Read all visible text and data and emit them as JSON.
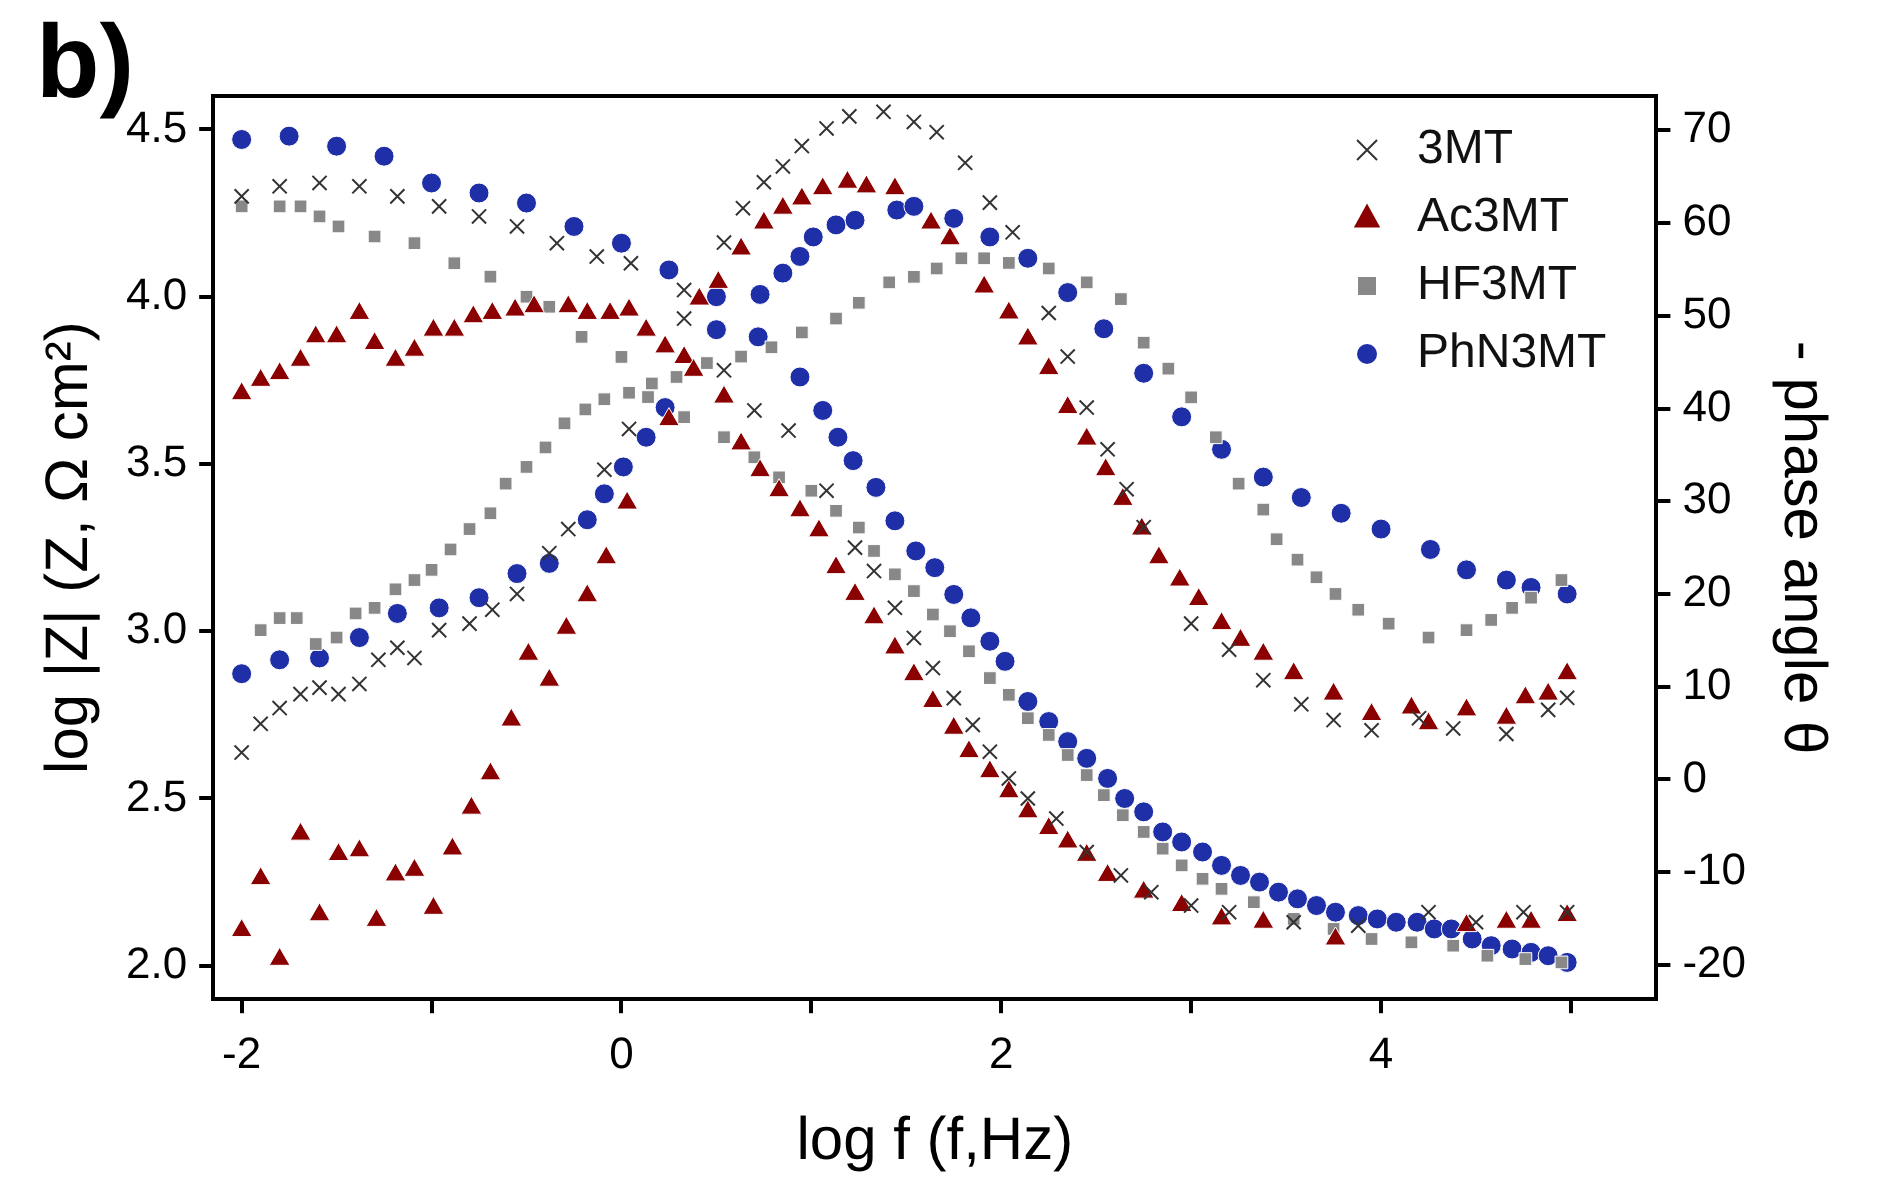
{
  "chart_data": {
    "type": "scatter",
    "title": "b)",
    "xlabel": "log f (f,Hz)",
    "ylabel": "log |Z| (Z, Ω cm²)",
    "y2label": "- phase angle θ",
    "xlim": [
      -2.15,
      5.45
    ],
    "xticks": [
      -2,
      {
        "value": -1,
        "label": null
      },
      0,
      {
        "value": 1,
        "label": null
      },
      2,
      {
        "value": 3,
        "label": null
      },
      4,
      {
        "value": 5,
        "label": null
      }
    ],
    "ylim": [
      1.9,
      4.6
    ],
    "yticks": [
      {
        "value": 2,
        "label": "2.0"
      },
      2.5,
      {
        "value": 3,
        "label": "3.0"
      },
      3.5,
      {
        "value": 4,
        "label": "4.0"
      },
      4.5
    ],
    "y2lim": [
      -23.7,
      73.7
    ],
    "y2ticks": [
      -20,
      -10,
      0,
      10,
      20,
      30,
      40,
      50,
      60,
      70
    ],
    "legend": "top right",
    "series": [
      {
        "name": "3MT",
        "color": "#333333",
        "marker": "cross",
        "x": [
          -2,
          -1.8,
          -1.59,
          -1.38,
          -1.18,
          -0.96,
          -0.75,
          -0.55,
          -0.34,
          -0.13,
          0.05,
          0.33,
          0.54,
          0.7,
          0.88,
          1.08,
          1.23,
          1.33,
          1.44,
          1.54,
          1.64,
          1.75,
          1.85,
          1.94,
          2.04,
          2.14,
          2.29,
          2.45,
          2.63,
          2.79,
          3.0,
          3.2,
          3.54,
          3.88,
          4.25,
          4.5,
          4.75,
          4.98
        ],
        "values": [
          4.3,
          4.33,
          4.34,
          4.33,
          4.3,
          4.27,
          4.24,
          4.21,
          4.16,
          4.12,
          4.1,
          4.02,
          3.78,
          3.66,
          3.6,
          3.42,
          3.25,
          3.18,
          3.07,
          2.98,
          2.89,
          2.8,
          2.72,
          2.64,
          2.56,
          2.5,
          2.44,
          2.34,
          2.27,
          2.22,
          2.18,
          2.16,
          2.13,
          2.12,
          2.16,
          2.13,
          2.16,
          2.16
        ]
      },
      {
        "color": "#333333",
        "marker": "cross",
        "axis": "y2",
        "x": [
          -2,
          -1.9,
          -1.8,
          -1.69,
          -1.59,
          -1.49,
          -1.38,
          -1.28,
          -1.18,
          -1.09,
          -0.96,
          -0.8,
          -0.68,
          -0.55,
          -0.38,
          -0.28,
          -0.09,
          0.04,
          0.33,
          0.54,
          0.64,
          0.75,
          0.85,
          0.95,
          1.08,
          1.2,
          1.38,
          1.54,
          1.66,
          1.81,
          1.94,
          2.06,
          2.25,
          2.35,
          2.45,
          2.56,
          2.66,
          2.75,
          3.0,
          3.2,
          3.38,
          3.58,
          3.75,
          3.95,
          4.2,
          4.38,
          4.66,
          4.88,
          4.98
        ],
        "values": [
          2.9,
          6.0,
          7.7,
          9.2,
          9.9,
          9.2,
          10.3,
          12.9,
          14.2,
          13.1,
          16.1,
          16.8,
          18.3,
          20.0,
          24.4,
          27.0,
          33.4,
          37.8,
          49.7,
          57.9,
          61.6,
          64.4,
          66.1,
          68.3,
          70.2,
          71.5,
          72.0,
          70.9,
          69.8,
          66.5,
          62.2,
          59.0,
          50.3,
          45.6,
          40.1,
          35.6,
          31.3,
          27.2,
          16.8,
          14.0,
          10.7,
          8.1,
          6.4,
          5.3,
          6.6,
          5.5,
          4.9,
          7.5,
          8.8
        ]
      },
      {
        "name": "Ac3MT",
        "color": "#8b0000",
        "marker": "triangle",
        "x": [
          -2,
          -1.9,
          -1.8,
          -1.69,
          -1.61,
          -1.5,
          -1.38,
          -1.3,
          -1.19,
          -1.09,
          -0.99,
          -0.88,
          -0.78,
          -0.68,
          -0.56,
          -0.46,
          -0.28,
          -0.18,
          -0.06,
          0.04,
          0.13,
          0.23,
          0.38,
          0.54,
          0.63,
          0.73,
          0.83,
          0.94,
          1.04,
          1.13,
          1.23,
          1.33,
          1.44,
          1.54,
          1.64,
          1.75,
          1.83,
          1.94,
          2.04,
          2.14,
          2.25,
          2.35,
          2.45,
          2.56,
          2.75,
          2.95,
          3.16,
          3.38,
          3.76,
          4.45,
          4.66,
          4.79,
          4.98
        ],
        "values": [
          3.71,
          3.75,
          3.77,
          3.81,
          3.88,
          3.88,
          3.95,
          3.86,
          3.81,
          3.84,
          3.9,
          3.9,
          3.94,
          3.95,
          3.96,
          3.97,
          3.97,
          3.95,
          3.95,
          3.96,
          3.9,
          3.85,
          3.78,
          3.7,
          3.56,
          3.48,
          3.42,
          3.36,
          3.3,
          3.19,
          3.11,
          3.04,
          2.95,
          2.87,
          2.79,
          2.71,
          2.64,
          2.58,
          2.52,
          2.46,
          2.41,
          2.37,
          2.33,
          2.27,
          2.22,
          2.18,
          2.14,
          2.13,
          2.08,
          2.12,
          2.13,
          2.13,
          2.15
        ]
      },
      {
        "color": "#8b0000",
        "marker": "triangle",
        "axis": "y2",
        "x": [
          -2,
          -1.9,
          -1.8,
          -1.69,
          -1.59,
          -1.49,
          -1.38,
          -1.29,
          -1.19,
          -1.09,
          -0.99,
          -0.89,
          -0.79,
          -0.69,
          -0.58,
          -0.49,
          -0.38,
          -0.29,
          -0.18,
          -0.08,
          0.03,
          0.25,
          0.33,
          0.41,
          0.51,
          0.63,
          0.75,
          0.85,
          0.95,
          1.06,
          1.19,
          1.29,
          1.44,
          1.63,
          1.73,
          1.91,
          2.04,
          2.14,
          2.25,
          2.35,
          2.45,
          2.55,
          2.64,
          2.74,
          2.83,
          2.94,
          3.04,
          3.16,
          3.26,
          3.38,
          3.54,
          3.75,
          3.95,
          4.16,
          4.25,
          4.45,
          4.66,
          4.76,
          4.88,
          4.98
        ],
        "values": [
          -16.3,
          -10.7,
          -19.4,
          -5.9,
          -14.6,
          -8.1,
          -7.7,
          -15.2,
          -10.3,
          -9.8,
          -13.9,
          -7.5,
          -3.1,
          0.6,
          6.4,
          13.5,
          10.7,
          16.3,
          19.8,
          23.9,
          29.8,
          38.8,
          45.5,
          51.8,
          53.6,
          57.2,
          60.0,
          61.6,
          62.6,
          63.7,
          64.4,
          63.9,
          63.7,
          60.0,
          58.3,
          53.1,
          50.3,
          47.5,
          44.3,
          40.1,
          36.7,
          33.4,
          30.2,
          27.0,
          23.9,
          21.5,
          19.4,
          16.8,
          15.0,
          13.5,
          11.4,
          9.2,
          7.0,
          7.7,
          6.0,
          7.5,
          6.6,
          8.8,
          9.2,
          11.4
        ]
      },
      {
        "name": "HF3MT",
        "color": "#888888",
        "marker": "square",
        "x": [
          -2,
          -1.8,
          -1.69,
          -1.59,
          -1.49,
          -1.3,
          -1.09,
          -0.88,
          -0.69,
          -0.5,
          -0.38,
          -0.21,
          0,
          0.14,
          0.33,
          0.54,
          0.7,
          0.83,
          1.0,
          1.13,
          1.25,
          1.33,
          1.44,
          1.54,
          1.64,
          1.73,
          1.83,
          1.94,
          2.04,
          2.14,
          2.25,
          2.35,
          2.45,
          2.54,
          2.64,
          2.75,
          2.85,
          2.95,
          3.06,
          3.16,
          3.33,
          3.54,
          3.75,
          3.95,
          4.16,
          4.38,
          4.56,
          4.76,
          4.95
        ],
        "values": [
          4.27,
          4.27,
          4.27,
          4.24,
          4.21,
          4.18,
          4.16,
          4.1,
          4.06,
          4.0,
          3.97,
          3.88,
          3.82,
          3.7,
          3.64,
          3.58,
          3.52,
          3.46,
          3.42,
          3.36,
          3.31,
          3.24,
          3.17,
          3.12,
          3.05,
          3.0,
          2.94,
          2.86,
          2.81,
          2.74,
          2.69,
          2.63,
          2.57,
          2.51,
          2.45,
          2.4,
          2.35,
          2.3,
          2.26,
          2.23,
          2.19,
          2.14,
          2.11,
          2.08,
          2.07,
          2.06,
          2.03,
          2.02,
          2.01
        ]
      },
      {
        "color": "#888888",
        "marker": "square",
        "axis": "y2",
        "x": [
          -1.9,
          -1.8,
          -1.71,
          -1.61,
          -1.5,
          -1.4,
          -1.3,
          -1.19,
          -1.09,
          -1.0,
          -0.9,
          -0.8,
          -0.69,
          -0.61,
          -0.5,
          -0.4,
          -0.3,
          -0.19,
          -0.09,
          0.04,
          0.16,
          0.29,
          0.45,
          0.63,
          0.79,
          0.95,
          1.13,
          1.25,
          1.41,
          1.54,
          1.66,
          1.79,
          1.91,
          2.04,
          2.25,
          2.45,
          2.63,
          2.75,
          2.88,
          3.0,
          3.13,
          3.25,
          3.38,
          3.45,
          3.56,
          3.66,
          3.76,
          3.88,
          4.04,
          4.25,
          4.45,
          4.58,
          4.69,
          4.79,
          4.95
        ],
        "values": [
          16.1,
          17.4,
          17.4,
          14.6,
          15.3,
          17.9,
          18.5,
          20.5,
          21.5,
          22.6,
          24.8,
          27.0,
          28.7,
          31.9,
          33.7,
          35.8,
          38.4,
          39.9,
          41.0,
          41.7,
          42.7,
          43.4,
          44.9,
          45.6,
          46.6,
          48.2,
          49.7,
          51.4,
          53.6,
          54.2,
          55.1,
          56.2,
          56.2,
          55.7,
          55.1,
          53.6,
          51.8,
          47.1,
          44.3,
          41.2,
          36.9,
          31.9,
          29.1,
          25.9,
          23.7,
          21.8,
          20.0,
          18.3,
          16.8,
          15.3,
          16.1,
          17.2,
          18.5,
          19.6,
          21.5
        ]
      },
      {
        "name": "PhN3MT",
        "color": "#1f2fa8",
        "marker": "circle",
        "x": [
          -2,
          -1.75,
          -1.5,
          -1.25,
          -1,
          -0.75,
          -0.5,
          -0.25,
          0,
          0.25,
          0.5,
          0.72,
          0.94,
          1.06,
          1.14,
          1.22,
          1.34,
          1.44,
          1.55,
          1.65,
          1.75,
          1.84,
          1.94,
          2.02,
          2.14,
          2.25,
          2.35,
          2.45,
          2.56,
          2.65,
          2.75,
          2.85,
          2.95,
          3.06,
          3.16,
          3.26,
          3.36,
          3.46,
          3.56,
          3.66,
          3.76,
          3.88,
          3.98,
          4.08,
          4.19,
          4.28,
          4.37,
          4.48,
          4.58,
          4.69,
          4.79,
          4.88,
          4.98
        ],
        "values": [
          4.47,
          4.48,
          4.45,
          4.42,
          4.34,
          4.31,
          4.28,
          4.21,
          4.16,
          4.08,
          4.0,
          3.88,
          3.76,
          3.66,
          3.58,
          3.51,
          3.43,
          3.33,
          3.24,
          3.19,
          3.11,
          3.04,
          2.97,
          2.91,
          2.79,
          2.73,
          2.67,
          2.62,
          2.56,
          2.5,
          2.46,
          2.4,
          2.37,
          2.34,
          2.3,
          2.27,
          2.25,
          2.22,
          2.2,
          2.18,
          2.16,
          2.15,
          2.14,
          2.13,
          2.13,
          2.11,
          2.11,
          2.08,
          2.06,
          2.05,
          2.04,
          2.03,
          2.01
        ]
      },
      {
        "color": "#1f2fa8",
        "marker": "circle",
        "axis": "y2",
        "x": [
          -2,
          -1.8,
          -1.59,
          -1.38,
          -1.18,
          -0.96,
          -0.75,
          -0.55,
          -0.38,
          -0.18,
          -0.09,
          0.01,
          0.13,
          0.23,
          0.33,
          0.5,
          0.73,
          0.85,
          0.94,
          1.01,
          1.13,
          1.23,
          1.45,
          1.54,
          1.75,
          1.94,
          2.14,
          2.35,
          2.54,
          2.75,
          2.95,
          3.16,
          3.38,
          3.58,
          3.79,
          4.0,
          4.26,
          4.45,
          4.66,
          4.79,
          4.98
        ],
        "values": [
          11.4,
          12.9,
          13.1,
          15.3,
          17.9,
          18.5,
          19.6,
          22.2,
          23.3,
          28.0,
          30.8,
          33.7,
          36.9,
          40.1,
          null,
          48.5,
          52.3,
          54.6,
          56.4,
          58.5,
          59.8,
          60.3,
          61.4,
          61.8,
          60.5,
          58.5,
          56.2,
          52.5,
          48.6,
          43.8,
          39.1,
          35.6,
          32.6,
          30.4,
          28.7,
          27.0,
          24.8,
          22.6,
          21.5,
          20.7,
          20.0
        ]
      }
    ]
  }
}
